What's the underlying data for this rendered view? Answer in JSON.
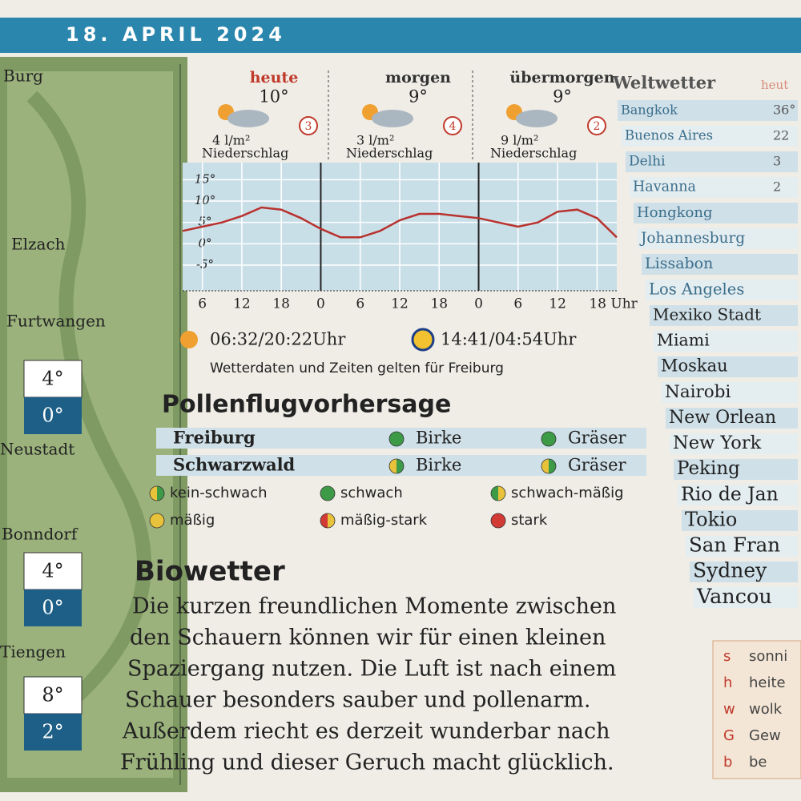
{
  "header": {
    "date": "18. APRIL 2024"
  },
  "map": {
    "places": [
      {
        "name": "Burg"
      },
      {
        "name": "Elzach"
      },
      {
        "name": "Furtwangen",
        "high": "4°",
        "low": "0°"
      },
      {
        "name": "Neustadt"
      },
      {
        "name": "Bonndorf",
        "high": "4°",
        "low": "0°"
      },
      {
        "name": "Tiengen",
        "high": "8°",
        "low": "2°"
      }
    ]
  },
  "days": [
    {
      "name": "heute",
      "temp": "10°",
      "wind": "3",
      "rain": "4 l/m²",
      "rain_label": "Niederschlag"
    },
    {
      "name": "morgen",
      "temp": "9°",
      "wind": "4",
      "rain": "3 l/m²",
      "rain_label": "Niederschlag"
    },
    {
      "name": "übermorgen",
      "temp": "9°",
      "wind": "2",
      "rain": "9 l/m²",
      "rain_label": "Niederschlag"
    }
  ],
  "temp_chart": {
    "type": "line",
    "color": "#b8322e",
    "x": [
      3,
      6,
      9,
      12,
      15,
      18,
      21,
      24,
      27,
      30,
      33,
      36,
      39,
      42,
      45,
      48,
      51,
      54,
      57,
      60,
      63,
      66,
      69
    ],
    "values": [
      3,
      4,
      5,
      6.5,
      8.5,
      8,
      6,
      3.5,
      1.5,
      1.5,
      3,
      5.5,
      7,
      7,
      6.5,
      6,
      5,
      4,
      5,
      7.5,
      8,
      6,
      1.5
    ],
    "xlim": [
      3,
      69
    ],
    "ylim": [
      -11,
      19
    ],
    "xticks": [
      {
        "value": 6,
        "label": "6"
      },
      {
        "value": 12,
        "label": "12"
      },
      {
        "value": 18,
        "label": "18"
      },
      {
        "value": 24,
        "label": "0"
      },
      {
        "value": 30,
        "label": "6"
      },
      {
        "value": 36,
        "label": "12"
      },
      {
        "value": 42,
        "label": "18"
      },
      {
        "value": 48,
        "label": "0"
      },
      {
        "value": 54,
        "label": "6"
      },
      {
        "value": 60,
        "label": "12"
      },
      {
        "value": 66,
        "label": "18 Uhr"
      }
    ],
    "yticks": [
      {
        "value": 15,
        "label": "15°"
      },
      {
        "value": 10,
        "label": "10°"
      },
      {
        "value": 5,
        "label": "5°"
      },
      {
        "value": 0,
        "label": "0°"
      },
      {
        "value": -5,
        "label": "-5°"
      }
    ]
  },
  "sun_moon": {
    "sun": "06:32/20:22Uhr",
    "moon": "14:41/04:54Uhr",
    "note": "Wetterdaten und Zeiten gelten für Freiburg"
  },
  "pollen": {
    "title": "Pollenflugvorhersage",
    "rows": [
      {
        "region": "Freiburg",
        "items": [
          {
            "plant": "Birke",
            "level": "schwach"
          },
          {
            "plant": "Gräser",
            "level": "schwach"
          }
        ]
      },
      {
        "region": "Schwarzwald",
        "items": [
          {
            "plant": "Birke",
            "level": "kein-schwach"
          },
          {
            "plant": "Gräser",
            "level": "kein-schwach"
          }
        ]
      }
    ],
    "legend": [
      {
        "label": "kein-schwach",
        "colors": [
          "#3d9a46",
          "#e8c23a"
        ]
      },
      {
        "label": "schwach",
        "colors": [
          "#3d9a46",
          "#3d9a46"
        ]
      },
      {
        "label": "schwach-mäßig",
        "colors": [
          "#e8c23a",
          "#3d9a46"
        ]
      },
      {
        "label": "mäßig",
        "colors": [
          "#e8c23a",
          "#e8c23a"
        ]
      },
      {
        "label": "mäßig-stark",
        "colors": [
          "#e8c23a",
          "#d23a36"
        ]
      },
      {
        "label": "stark",
        "colors": [
          "#d23a36",
          "#d23a36"
        ]
      }
    ]
  },
  "biowetter": {
    "title": "Biowetter",
    "lines": [
      "Die kurzen freundlichen Momente zwischen",
      "den Schauern können wir für einen kleinen",
      "Spaziergang nutzen. Die Luft ist nach einem",
      "Schauer besonders sauber und pollenarm.",
      "Außerdem riecht es derzeit wunderbar nach",
      "Frühling und dieser Geruch macht glücklich."
    ]
  },
  "weltwetter": {
    "title": "Weltwetter",
    "column": "heut",
    "cities": [
      {
        "name": "Bangkok",
        "temp": "36°"
      },
      {
        "name": "Buenos Aires",
        "temp": "22"
      },
      {
        "name": "Delhi",
        "temp": "3"
      },
      {
        "name": "Havanna",
        "temp": "2"
      },
      {
        "name": "Hongkong"
      },
      {
        "name": "Johannesburg"
      },
      {
        "name": "Lissabon"
      },
      {
        "name": "Los Angeles"
      },
      {
        "name": "Mexiko Stadt"
      },
      {
        "name": "Miami"
      },
      {
        "name": "Moskau"
      },
      {
        "name": "Nairobi"
      },
      {
        "name": "New Orlean"
      },
      {
        "name": "New York"
      },
      {
        "name": "Peking"
      },
      {
        "name": "Rio de Jan"
      },
      {
        "name": "Tokio"
      },
      {
        "name": "San Fran"
      },
      {
        "name": "Sydney"
      },
      {
        "name": "Vancou"
      }
    ]
  },
  "key": [
    {
      "code": "s",
      "text": "sonni"
    },
    {
      "code": "h",
      "text": "heite"
    },
    {
      "code": "w",
      "text": "wolk"
    },
    {
      "code": "G",
      "text": "Gew"
    },
    {
      "code": "b",
      "text": "be"
    }
  ]
}
